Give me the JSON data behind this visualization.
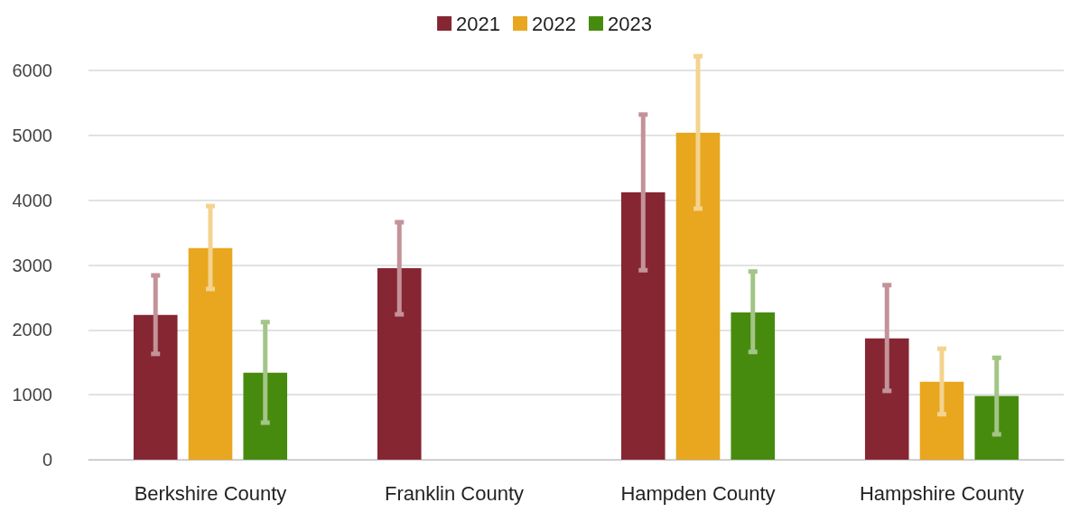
{
  "chart_data": {
    "type": "bar",
    "categories": [
      "Berkshire County",
      "Franklin County",
      "Hampden County",
      "Hampshire County"
    ],
    "series": [
      {
        "name": "2021",
        "color": "#862633",
        "values": [
          2230,
          2950,
          4120,
          1870
        ],
        "errors": [
          [
            1630,
            2840
          ],
          [
            2240,
            3660
          ],
          [
            2920,
            5320
          ],
          [
            1060,
            2690
          ]
        ]
      },
      {
        "name": "2022",
        "color": "#e8a71e",
        "values": [
          3260,
          null,
          5040,
          1200
        ],
        "errors": [
          [
            2630,
            3910
          ],
          null,
          [
            3870,
            6220
          ],
          [
            700,
            1710
          ]
        ]
      },
      {
        "name": "2023",
        "color": "#478b0e",
        "values": [
          1340,
          null,
          2270,
          980
        ],
        "errors": [
          [
            570,
            2120
          ],
          null,
          [
            1660,
            2900
          ],
          [
            390,
            1570
          ]
        ]
      }
    ],
    "ylim": [
      0,
      6000
    ],
    "yticks": [
      0,
      1000,
      2000,
      3000,
      4000,
      5000,
      6000
    ],
    "grid": "y",
    "legend": "top"
  }
}
